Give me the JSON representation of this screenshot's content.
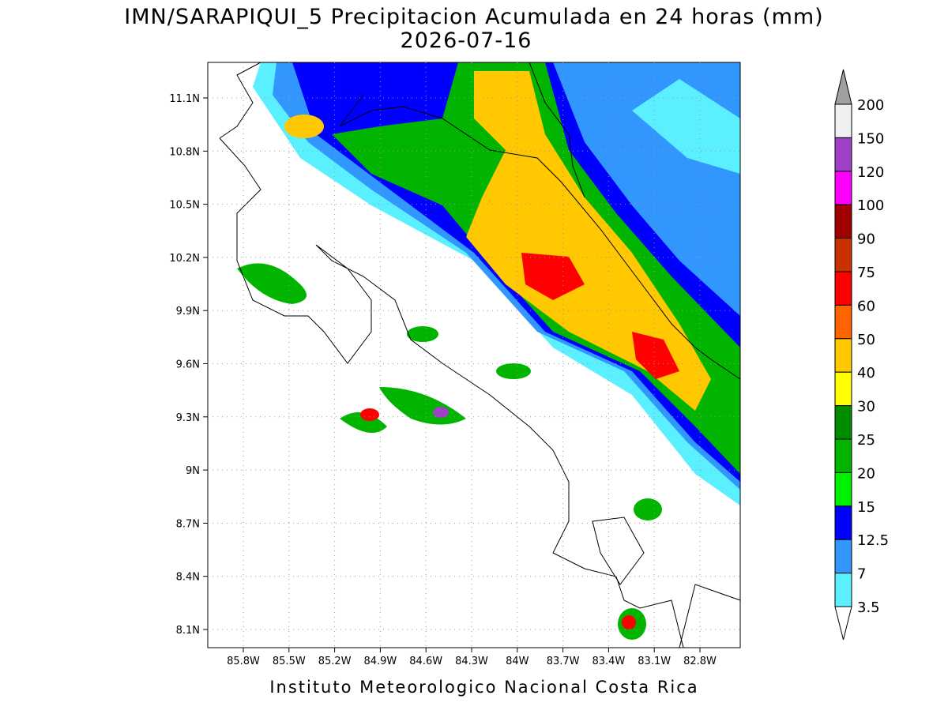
{
  "map": {
    "title": "IMN/SARAPIQUI_5 Precipitacion Acumulada en 24 horas (mm)",
    "subtitle": "2026-07-16",
    "footer": "Instituto Meteorologico Nacional Costa Rica",
    "lat_labels": [
      "11.1N",
      "10.8N",
      "10.5N",
      "10.2N",
      "9.9N",
      "9.6N",
      "9.3N",
      "9N",
      "8.7N",
      "8.4N",
      "8.1N"
    ],
    "lon_labels": [
      "85.8W",
      "85.5W",
      "85.2W",
      "84.9W",
      "84.6W",
      "84.3W",
      "84W",
      "83.7W",
      "83.4W",
      "83.1W",
      "82.8W"
    ],
    "colorbar": {
      "levels": [
        "200",
        "150",
        "120",
        "100",
        "90",
        "75",
        "60",
        "50",
        "40",
        "30",
        "25",
        "20",
        "15",
        "12.5",
        "7",
        "3.5"
      ],
      "over_color": "#a0a0a0",
      "colors": [
        "#f0f0f0",
        "#a040c8",
        "#ff00ff",
        "#a00000",
        "#c83200",
        "#ff0000",
        "#ff6400",
        "#ffc800",
        "#ffff00",
        "#008c00",
        "#00b400",
        "#00f000",
        "#0000ff",
        "#3296ff",
        "#5af0ff"
      ],
      "under_color": "#ffffff"
    }
  }
}
